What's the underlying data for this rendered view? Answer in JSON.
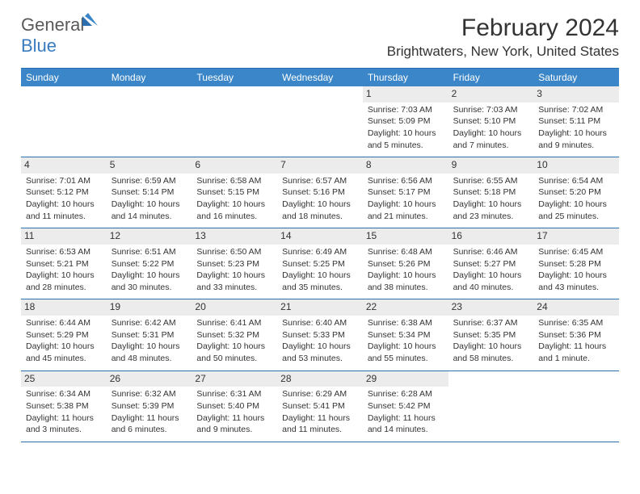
{
  "logo": {
    "text_left": "General",
    "text_right": "Blue"
  },
  "header": {
    "month_title": "February 2024",
    "location": "Brightwaters, New York, United States"
  },
  "colors": {
    "header_bg": "#3a86c8",
    "border": "#2d6fae",
    "daynum_bg": "#ececec",
    "text": "#333333"
  },
  "days_of_week": [
    "Sunday",
    "Monday",
    "Tuesday",
    "Wednesday",
    "Thursday",
    "Friday",
    "Saturday"
  ],
  "cells": [
    {
      "blank": true
    },
    {
      "blank": true
    },
    {
      "blank": true
    },
    {
      "blank": true
    },
    {
      "n": "1",
      "sr": "Sunrise: 7:03 AM",
      "ss": "Sunset: 5:09 PM",
      "d1": "Daylight: 10 hours",
      "d2": "and 5 minutes."
    },
    {
      "n": "2",
      "sr": "Sunrise: 7:03 AM",
      "ss": "Sunset: 5:10 PM",
      "d1": "Daylight: 10 hours",
      "d2": "and 7 minutes."
    },
    {
      "n": "3",
      "sr": "Sunrise: 7:02 AM",
      "ss": "Sunset: 5:11 PM",
      "d1": "Daylight: 10 hours",
      "d2": "and 9 minutes."
    },
    {
      "n": "4",
      "sr": "Sunrise: 7:01 AM",
      "ss": "Sunset: 5:12 PM",
      "d1": "Daylight: 10 hours",
      "d2": "and 11 minutes."
    },
    {
      "n": "5",
      "sr": "Sunrise: 6:59 AM",
      "ss": "Sunset: 5:14 PM",
      "d1": "Daylight: 10 hours",
      "d2": "and 14 minutes."
    },
    {
      "n": "6",
      "sr": "Sunrise: 6:58 AM",
      "ss": "Sunset: 5:15 PM",
      "d1": "Daylight: 10 hours",
      "d2": "and 16 minutes."
    },
    {
      "n": "7",
      "sr": "Sunrise: 6:57 AM",
      "ss": "Sunset: 5:16 PM",
      "d1": "Daylight: 10 hours",
      "d2": "and 18 minutes."
    },
    {
      "n": "8",
      "sr": "Sunrise: 6:56 AM",
      "ss": "Sunset: 5:17 PM",
      "d1": "Daylight: 10 hours",
      "d2": "and 21 minutes."
    },
    {
      "n": "9",
      "sr": "Sunrise: 6:55 AM",
      "ss": "Sunset: 5:18 PM",
      "d1": "Daylight: 10 hours",
      "d2": "and 23 minutes."
    },
    {
      "n": "10",
      "sr": "Sunrise: 6:54 AM",
      "ss": "Sunset: 5:20 PM",
      "d1": "Daylight: 10 hours",
      "d2": "and 25 minutes."
    },
    {
      "n": "11",
      "sr": "Sunrise: 6:53 AM",
      "ss": "Sunset: 5:21 PM",
      "d1": "Daylight: 10 hours",
      "d2": "and 28 minutes."
    },
    {
      "n": "12",
      "sr": "Sunrise: 6:51 AM",
      "ss": "Sunset: 5:22 PM",
      "d1": "Daylight: 10 hours",
      "d2": "and 30 minutes."
    },
    {
      "n": "13",
      "sr": "Sunrise: 6:50 AM",
      "ss": "Sunset: 5:23 PM",
      "d1": "Daylight: 10 hours",
      "d2": "and 33 minutes."
    },
    {
      "n": "14",
      "sr": "Sunrise: 6:49 AM",
      "ss": "Sunset: 5:25 PM",
      "d1": "Daylight: 10 hours",
      "d2": "and 35 minutes."
    },
    {
      "n": "15",
      "sr": "Sunrise: 6:48 AM",
      "ss": "Sunset: 5:26 PM",
      "d1": "Daylight: 10 hours",
      "d2": "and 38 minutes."
    },
    {
      "n": "16",
      "sr": "Sunrise: 6:46 AM",
      "ss": "Sunset: 5:27 PM",
      "d1": "Daylight: 10 hours",
      "d2": "and 40 minutes."
    },
    {
      "n": "17",
      "sr": "Sunrise: 6:45 AM",
      "ss": "Sunset: 5:28 PM",
      "d1": "Daylight: 10 hours",
      "d2": "and 43 minutes."
    },
    {
      "n": "18",
      "sr": "Sunrise: 6:44 AM",
      "ss": "Sunset: 5:29 PM",
      "d1": "Daylight: 10 hours",
      "d2": "and 45 minutes."
    },
    {
      "n": "19",
      "sr": "Sunrise: 6:42 AM",
      "ss": "Sunset: 5:31 PM",
      "d1": "Daylight: 10 hours",
      "d2": "and 48 minutes."
    },
    {
      "n": "20",
      "sr": "Sunrise: 6:41 AM",
      "ss": "Sunset: 5:32 PM",
      "d1": "Daylight: 10 hours",
      "d2": "and 50 minutes."
    },
    {
      "n": "21",
      "sr": "Sunrise: 6:40 AM",
      "ss": "Sunset: 5:33 PM",
      "d1": "Daylight: 10 hours",
      "d2": "and 53 minutes."
    },
    {
      "n": "22",
      "sr": "Sunrise: 6:38 AM",
      "ss": "Sunset: 5:34 PM",
      "d1": "Daylight: 10 hours",
      "d2": "and 55 minutes."
    },
    {
      "n": "23",
      "sr": "Sunrise: 6:37 AM",
      "ss": "Sunset: 5:35 PM",
      "d1": "Daylight: 10 hours",
      "d2": "and 58 minutes."
    },
    {
      "n": "24",
      "sr": "Sunrise: 6:35 AM",
      "ss": "Sunset: 5:36 PM",
      "d1": "Daylight: 11 hours",
      "d2": "and 1 minute."
    },
    {
      "n": "25",
      "sr": "Sunrise: 6:34 AM",
      "ss": "Sunset: 5:38 PM",
      "d1": "Daylight: 11 hours",
      "d2": "and 3 minutes."
    },
    {
      "n": "26",
      "sr": "Sunrise: 6:32 AM",
      "ss": "Sunset: 5:39 PM",
      "d1": "Daylight: 11 hours",
      "d2": "and 6 minutes."
    },
    {
      "n": "27",
      "sr": "Sunrise: 6:31 AM",
      "ss": "Sunset: 5:40 PM",
      "d1": "Daylight: 11 hours",
      "d2": "and 9 minutes."
    },
    {
      "n": "28",
      "sr": "Sunrise: 6:29 AM",
      "ss": "Sunset: 5:41 PM",
      "d1": "Daylight: 11 hours",
      "d2": "and 11 minutes."
    },
    {
      "n": "29",
      "sr": "Sunrise: 6:28 AM",
      "ss": "Sunset: 5:42 PM",
      "d1": "Daylight: 11 hours",
      "d2": "and 14 minutes."
    },
    {
      "blank": true
    },
    {
      "blank": true
    }
  ]
}
